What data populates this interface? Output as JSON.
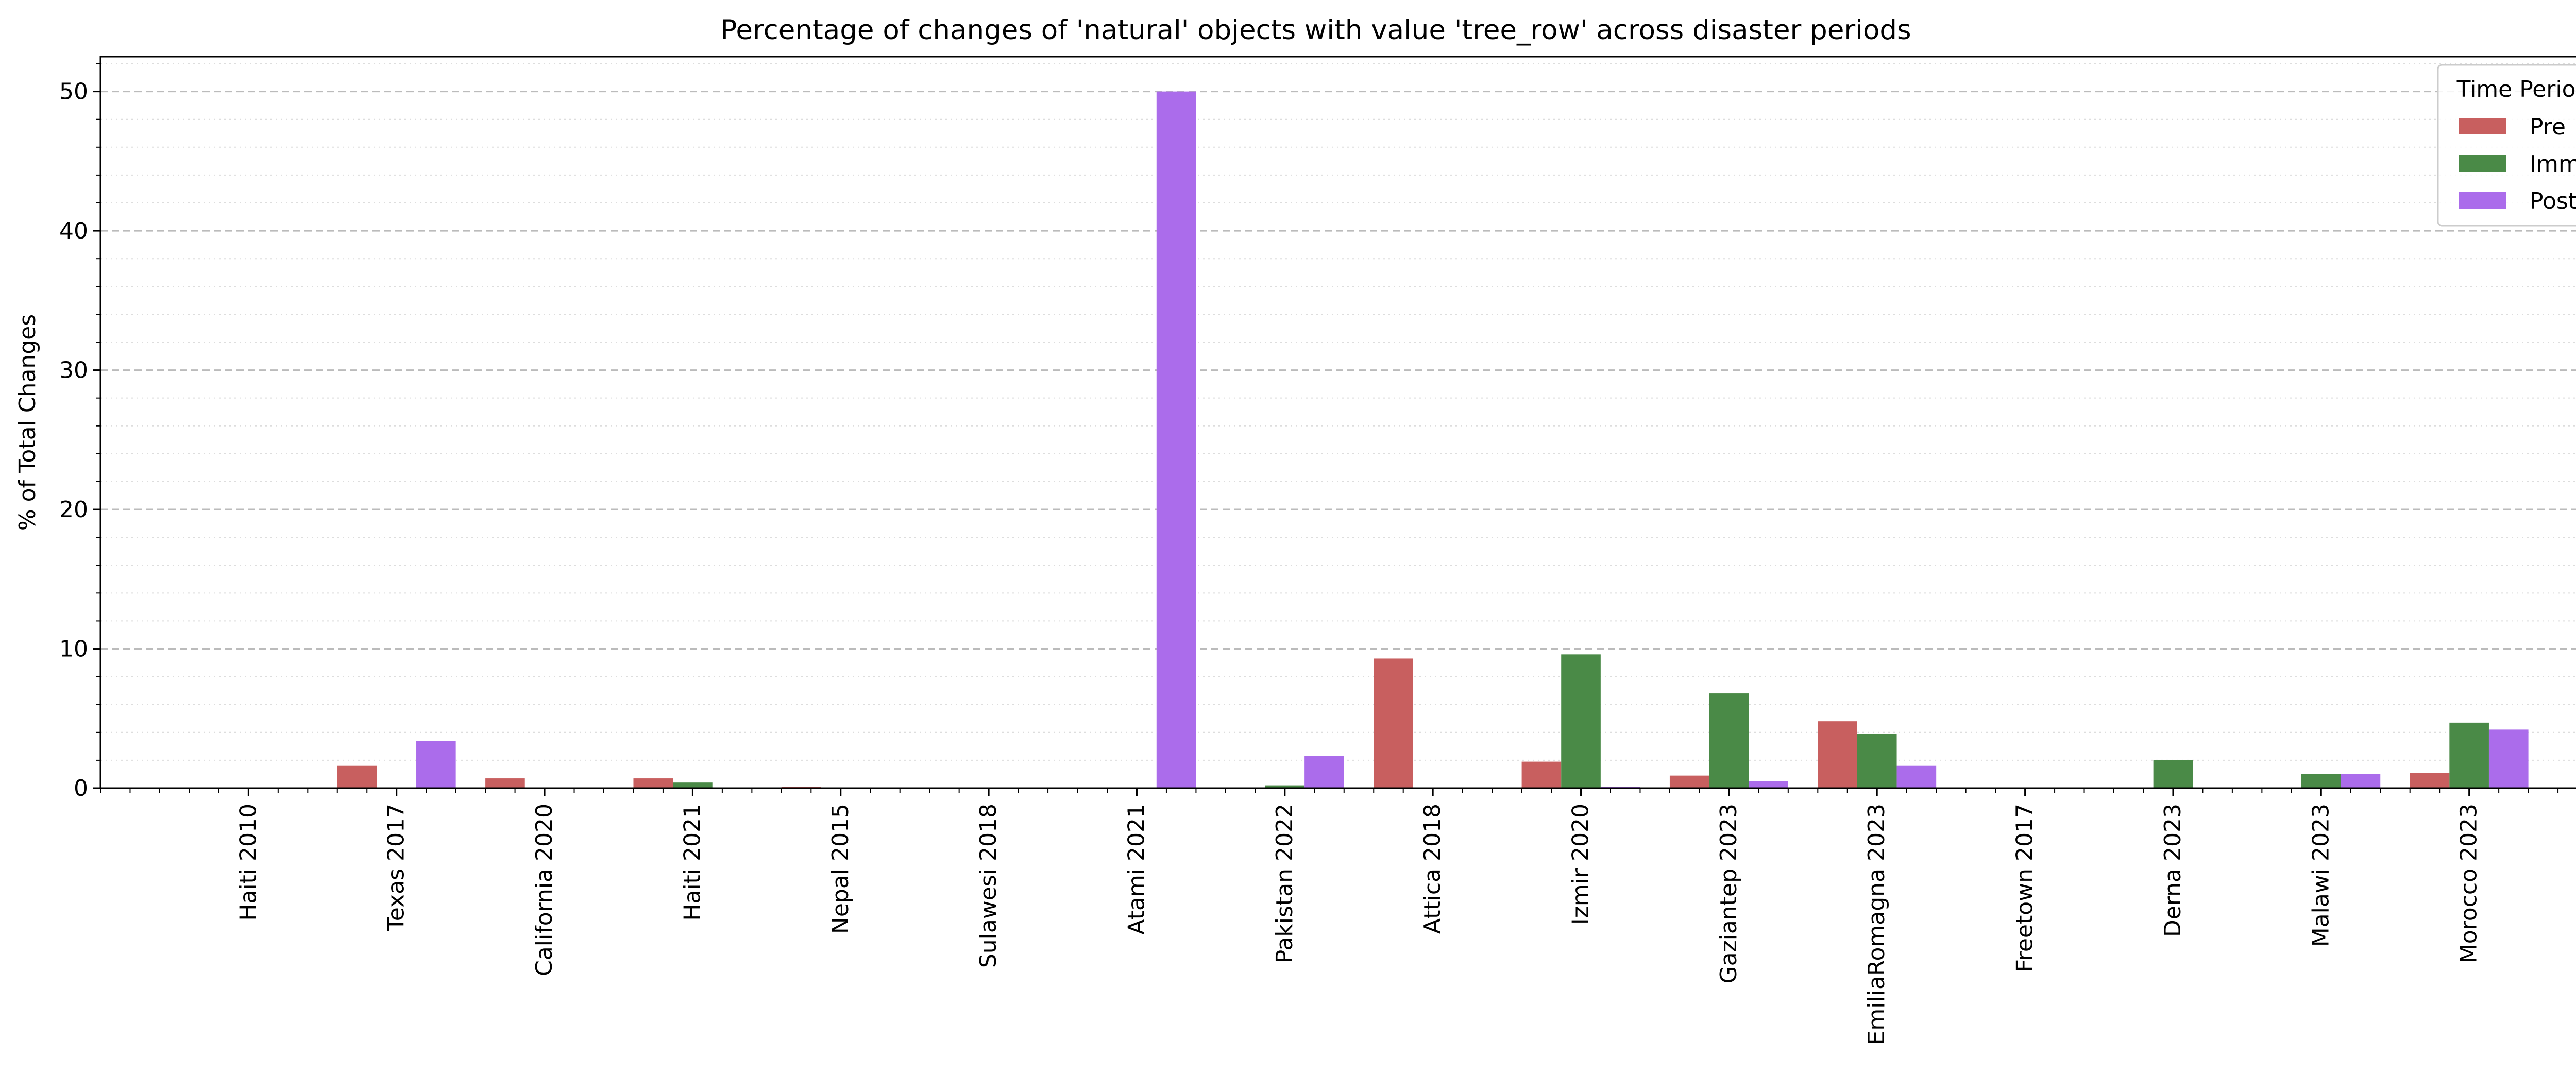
{
  "chart_data": {
    "type": "bar",
    "title": "Percentage of changes of 'natural' objects with value 'tree_row' across disaster periods",
    "xlabel": "",
    "ylabel": "% of Total Changes",
    "ylim": [
      0,
      52.5
    ],
    "yticks": [
      0,
      10,
      20,
      30,
      40,
      50
    ],
    "grid": true,
    "legend": {
      "title": "Time Period",
      "placement": "top-right"
    },
    "categories": [
      "Haiti 2010",
      "Texas 2017",
      "California 2020",
      "Haiti 2021",
      "Nepal 2015",
      "Sulawesi 2018",
      "Atami 2021",
      "Pakistan 2022",
      "Attica 2018",
      "Izmir 2020",
      "Gaziantep 2023",
      "EmiliaRomagna 2023",
      "Freetown 2017",
      "Derna 2023",
      "Malawi 2023",
      "Morocco 2023"
    ],
    "series": [
      {
        "name": "Pre",
        "color": "#c85f5f",
        "values": [
          0,
          1.6,
          0.7,
          0.7,
          0.1,
          0,
          0,
          0,
          9.3,
          1.9,
          0.9,
          4.8,
          0,
          0,
          0,
          1.1
        ]
      },
      {
        "name": "Imm",
        "color": "#4a8a47",
        "values": [
          0,
          0,
          0,
          0.4,
          0,
          0,
          0,
          0.2,
          0,
          9.6,
          6.8,
          3.9,
          0,
          2.0,
          1.0,
          4.7
        ]
      },
      {
        "name": "Post",
        "color": "#ab6ceb",
        "values": [
          0,
          3.4,
          0,
          0,
          0,
          0,
          50.0,
          2.3,
          0,
          0.1,
          0.5,
          1.6,
          0,
          0,
          1.0,
          4.2
        ]
      }
    ]
  }
}
